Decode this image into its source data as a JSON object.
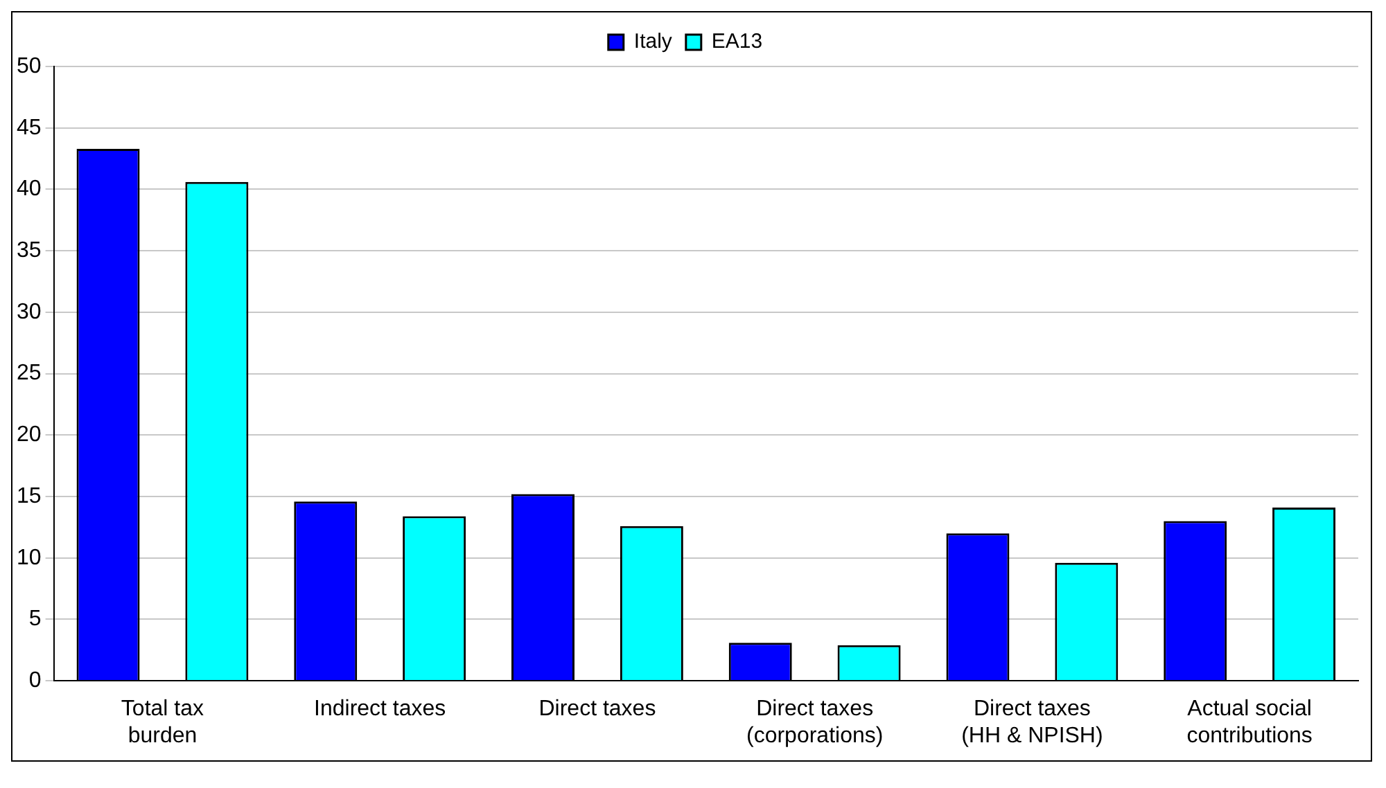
{
  "chart_data": {
    "type": "bar",
    "categories": [
      "Total tax burden",
      "Indirect taxes",
      "Direct taxes",
      "Direct taxes (corporations)",
      "Direct taxes (HH & NPISH)",
      "Actual social contributions"
    ],
    "series": [
      {
        "name": "Italy",
        "color": "#0000ff",
        "values": [
          43.3,
          14.6,
          15.2,
          3.1,
          12.0,
          13.0
        ]
      },
      {
        "name": "EA13",
        "color": "#00ffff",
        "values": [
          40.6,
          13.4,
          12.6,
          2.9,
          9.6,
          14.1
        ]
      }
    ],
    "ylim": [
      0,
      50
    ],
    "yticks": [
      0,
      5,
      10,
      15,
      20,
      25,
      30,
      35,
      40,
      45,
      50
    ],
    "grid": "y",
    "legend": "top"
  }
}
